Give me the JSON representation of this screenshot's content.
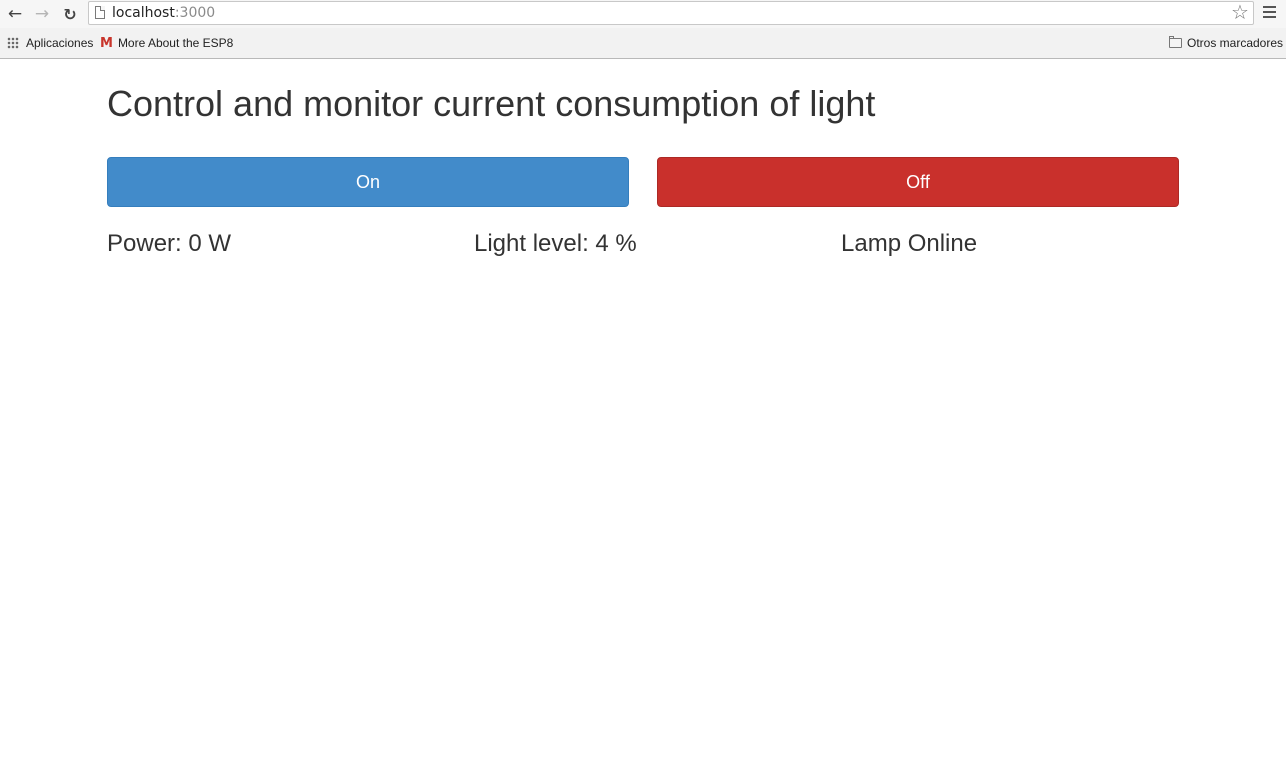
{
  "browser": {
    "url_host": "localhost",
    "url_port": ":3000",
    "bookmarks": {
      "apps_label": "Aplicaciones",
      "esp_label": "More About the ESP8",
      "other_label": "Otros marcadores"
    }
  },
  "page": {
    "title": "Control and monitor current consumption of light",
    "on_label": "On",
    "off_label": "Off",
    "power_text": "Power: 0 W",
    "light_text": "Light level: 4 %",
    "lamp_text": "Lamp Online"
  },
  "colors": {
    "on_button": "#428bca",
    "off_button": "#c9302c",
    "text": "#333333"
  },
  "icons": [
    "back-arrow-icon",
    "forward-arrow-icon",
    "reload-icon",
    "page-icon",
    "star-icon",
    "menu-icon",
    "apps-grid-icon",
    "gmail-icon",
    "folder-icon"
  ]
}
